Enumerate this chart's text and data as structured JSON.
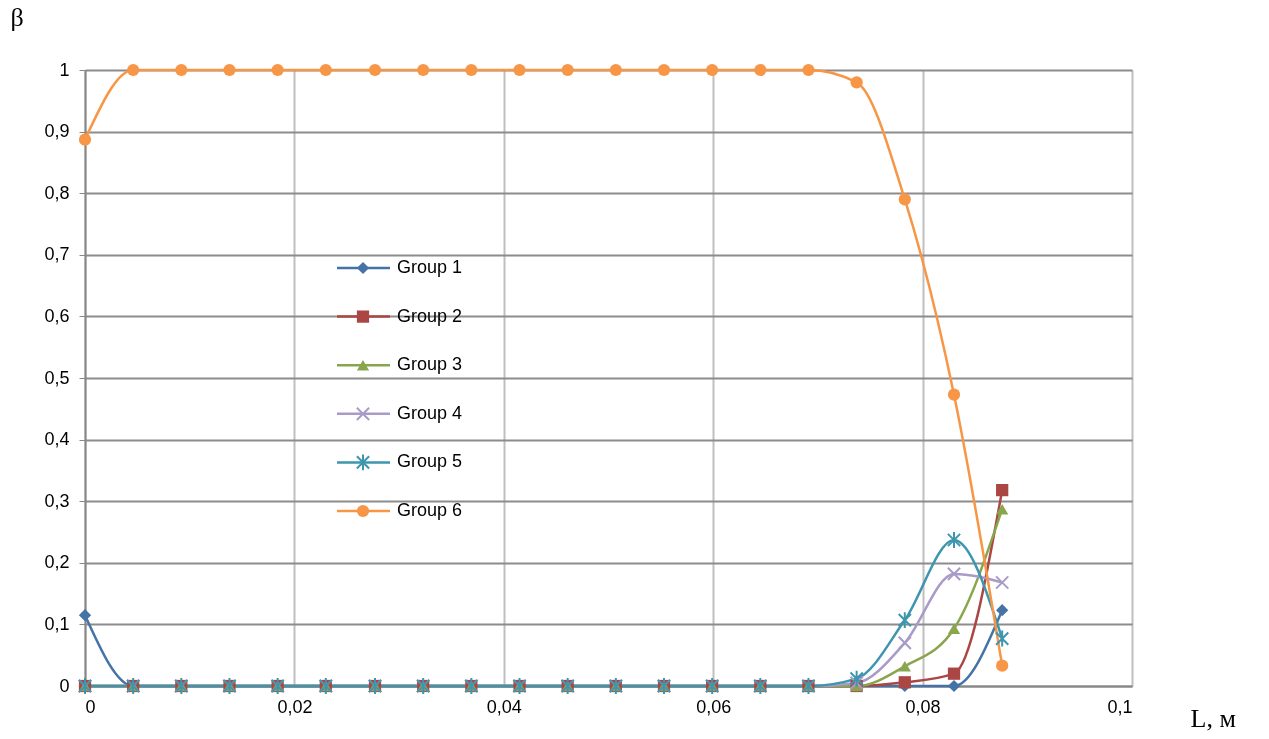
{
  "chart_data": {
    "type": "line",
    "xlabel": "L, м",
    "ylabel": "β",
    "x": [
      0,
      0.0046,
      0.0092,
      0.0138,
      0.0184,
      0.023,
      0.0277,
      0.0323,
      0.0369,
      0.0415,
      0.0461,
      0.0507,
      0.0553,
      0.0599,
      0.0645,
      0.0691,
      0.0737,
      0.0783,
      0.083,
      0.0876
    ],
    "series": [
      {
        "name": "Group 1",
        "color": "#4572a7",
        "marker": "diamond",
        "values": [
          0.115,
          0,
          0,
          0,
          0,
          0,
          0,
          0,
          0,
          0,
          0,
          0,
          0,
          0,
          0,
          0,
          0,
          0,
          0,
          0.123
        ]
      },
      {
        "name": "Group 2",
        "color": "#aa4643",
        "marker": "square",
        "values": [
          0,
          0,
          0,
          0,
          0,
          0,
          0,
          0,
          0,
          0,
          0,
          0,
          0,
          0,
          0,
          0,
          0,
          0.006,
          0.02,
          0.318
        ]
      },
      {
        "name": "Group 3",
        "color": "#89a54e",
        "marker": "triangle",
        "values": [
          0,
          0,
          0,
          0,
          0,
          0,
          0,
          0,
          0,
          0,
          0,
          0,
          0,
          0,
          0,
          0,
          0,
          0.032,
          0.093,
          0.287
        ]
      },
      {
        "name": "Group 4",
        "color": "#a99bc8",
        "marker": "cross",
        "values": [
          0,
          0,
          0,
          0,
          0,
          0,
          0,
          0,
          0,
          0,
          0,
          0,
          0,
          0,
          0,
          0,
          0.005,
          0.07,
          0.182,
          0.168
        ]
      },
      {
        "name": "Group 5",
        "color": "#3d96ae",
        "marker": "cross",
        "values": [
          0,
          0,
          0,
          0,
          0,
          0,
          0,
          0,
          0,
          0,
          0,
          0,
          0,
          0,
          0,
          0,
          0.012,
          0.107,
          0.237,
          0.077
        ]
      },
      {
        "name": "Group 6",
        "color": "#f79646",
        "marker": "circle",
        "values": [
          0.887,
          1,
          1,
          1,
          1,
          1,
          1,
          1,
          1,
          1,
          1,
          1,
          1,
          1,
          1,
          1,
          0.98,
          0.79,
          0.473,
          0.033
        ]
      }
    ],
    "xlim": [
      0,
      0.1
    ],
    "xticks": [
      0,
      {
        "value": 0.02,
        "label": "0,02"
      },
      {
        "value": 0.04,
        "label": "0,04"
      },
      {
        "value": 0.06,
        "label": "0,06"
      },
      {
        "value": 0.08,
        "label": "0,08"
      },
      {
        "value": 0.1,
        "label": "0,1"
      }
    ],
    "ylim": [
      0,
      1
    ],
    "yticks": [
      0,
      {
        "value": 0.1,
        "label": "0,1"
      },
      {
        "value": 0.2,
        "label": "0,2"
      },
      {
        "value": 0.3,
        "label": "0,3"
      },
      {
        "value": 0.4,
        "label": "0,4"
      },
      {
        "value": 0.5,
        "label": "0,5"
      },
      {
        "value": 0.6,
        "label": "0,6"
      },
      {
        "value": 0.7,
        "label": "0,7"
      },
      {
        "value": 0.8,
        "label": "0,8"
      },
      {
        "value": 0.9,
        "label": "0,9"
      },
      {
        "value": 1,
        "label": "1"
      }
    ],
    "grid": true,
    "legend": "center left",
    "line_style": "solid"
  }
}
